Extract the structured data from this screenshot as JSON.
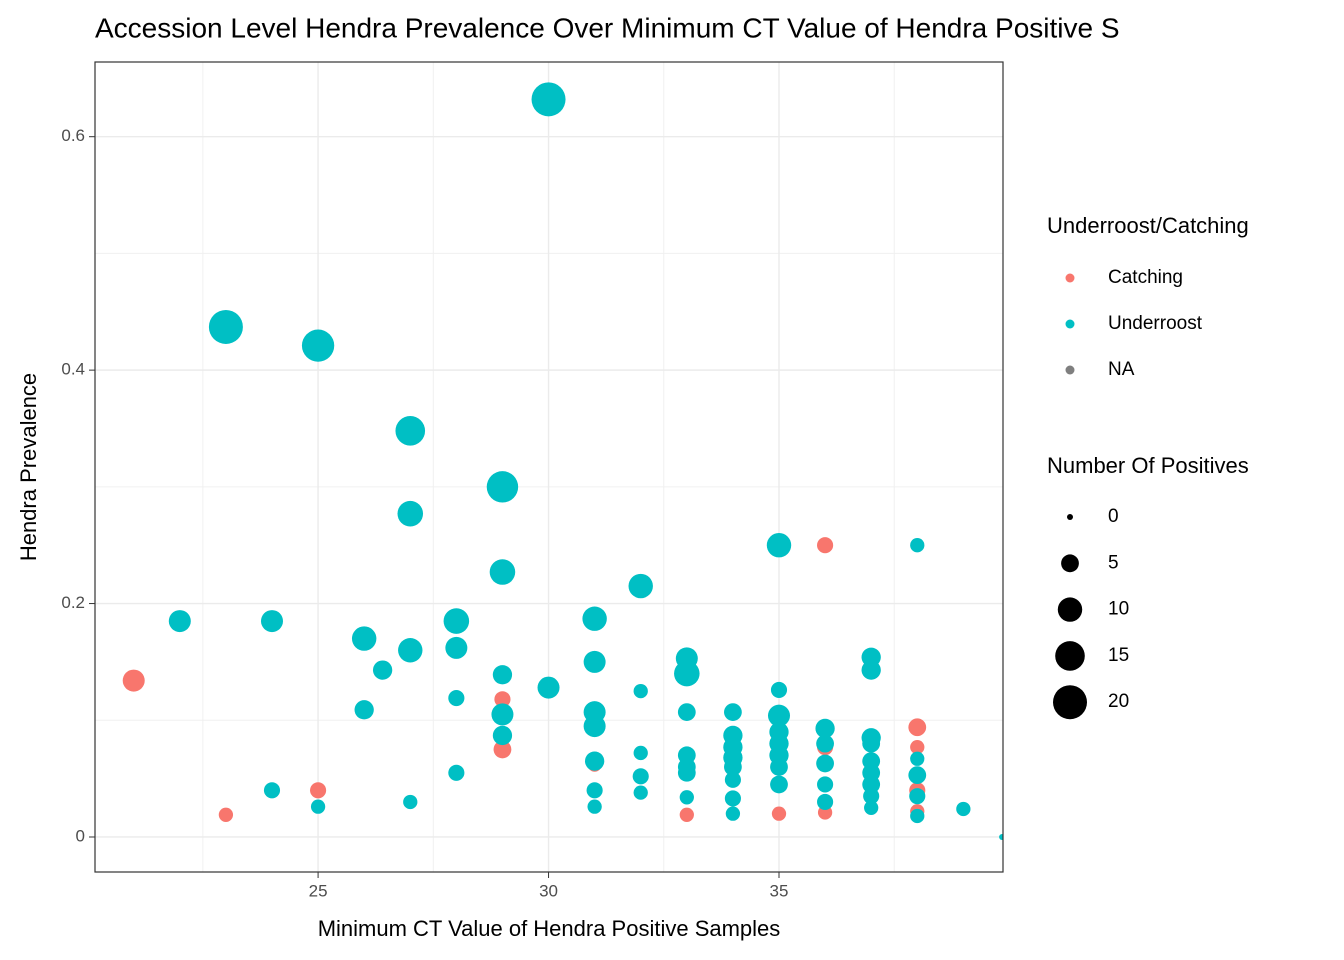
{
  "chart_data": {
    "type": "scatter",
    "title": "Accession Level Hendra Prevalence Over Minimum CT Value of Hendra Positive S",
    "x_label": "Minimum CT Value of Hendra Positive Samples",
    "y_label": "Hendra Prevalence",
    "color_legend_title": "Underroost/Catching",
    "size_legend_title": "Number Of Positives",
    "size_legend": [
      0,
      5,
      10,
      15,
      20
    ],
    "xlim": [
      20.16,
      39.86
    ],
    "ylim": [
      -0.03,
      0.664
    ],
    "xticks": [
      25,
      30,
      35
    ],
    "yticks": [
      0,
      0.2,
      0.4,
      0.6
    ],
    "xticks_label": null,
    "grid": true,
    "series": [
      {
        "name": "Catching",
        "color": "#F8766D",
        "x": [
          21,
          23,
          25,
          29,
          29,
          31,
          33,
          35,
          36,
          36,
          36,
          38,
          38,
          38,
          38
        ],
        "values": [
          0.134,
          0.019,
          0.04,
          0.118,
          0.075,
          0.062,
          0.019,
          0.02,
          0.25,
          0.077,
          0.021,
          0.094,
          0.077,
          0.04,
          0.022
        ],
        "sizes": [
          8,
          3,
          4,
          4,
          5,
          3,
          3,
          3,
          4,
          4,
          3,
          5,
          3,
          4,
          3
        ]
      },
      {
        "name": "Underroost",
        "color": "#00BFC4",
        "x": [
          22,
          23,
          24,
          24,
          25,
          25,
          26,
          26,
          26.4,
          27,
          27,
          27,
          27,
          28,
          28,
          28,
          28,
          29,
          29,
          29,
          29,
          29,
          30,
          30,
          31,
          31,
          31,
          31,
          31,
          31,
          31,
          32,
          32,
          32,
          32,
          32,
          33,
          33,
          33,
          33,
          33,
          33,
          33,
          34,
          34,
          34,
          34,
          34,
          34,
          34,
          34,
          35,
          35,
          35,
          35,
          35,
          35,
          35,
          35,
          36,
          36,
          36,
          36,
          36,
          37,
          37,
          37,
          37,
          37,
          37,
          37,
          37,
          37,
          38,
          38,
          38,
          38,
          38,
          39,
          39.84
        ],
        "values": [
          0.185,
          0.437,
          0.185,
          0.04,
          0.421,
          0.026,
          0.17,
          0.109,
          0.143,
          0.348,
          0.277,
          0.16,
          0.03,
          0.185,
          0.162,
          0.119,
          0.055,
          0.3,
          0.227,
          0.139,
          0.105,
          0.087,
          0.632,
          0.128,
          0.187,
          0.15,
          0.107,
          0.095,
          0.065,
          0.04,
          0.026,
          0.215,
          0.125,
          0.072,
          0.052,
          0.038,
          0.153,
          0.14,
          0.107,
          0.07,
          0.06,
          0.055,
          0.034,
          0.107,
          0.087,
          0.077,
          0.068,
          0.06,
          0.049,
          0.033,
          0.02,
          0.25,
          0.126,
          0.104,
          0.09,
          0.08,
          0.07,
          0.06,
          0.045,
          0.093,
          0.08,
          0.063,
          0.045,
          0.03,
          0.154,
          0.143,
          0.085,
          0.08,
          0.065,
          0.055,
          0.045,
          0.035,
          0.025,
          0.25,
          0.067,
          0.053,
          0.035,
          0.018,
          0.024,
          0
        ],
        "sizes": [
          8,
          20,
          8,
          4,
          18,
          3,
          10,
          6,
          6,
          15,
          11,
          10,
          3,
          11,
          8,
          4,
          4,
          17,
          11,
          6,
          8,
          6,
          20,
          8,
          10,
          8,
          8,
          8,
          6,
          4,
          3,
          10,
          3,
          3,
          4,
          3,
          8,
          11,
          5,
          5,
          5,
          5,
          3,
          5,
          6,
          6,
          6,
          5,
          4,
          4,
          3,
          10,
          4,
          8,
          6,
          6,
          6,
          5,
          5,
          6,
          5,
          5,
          4,
          4,
          6,
          6,
          6,
          5,
          5,
          5,
          5,
          4,
          3,
          3,
          3,
          5,
          4,
          3,
          3,
          0
        ]
      },
      {
        "name": "NA",
        "color": "#7F7F7F",
        "x": [],
        "values": [],
        "sizes": []
      }
    ]
  }
}
